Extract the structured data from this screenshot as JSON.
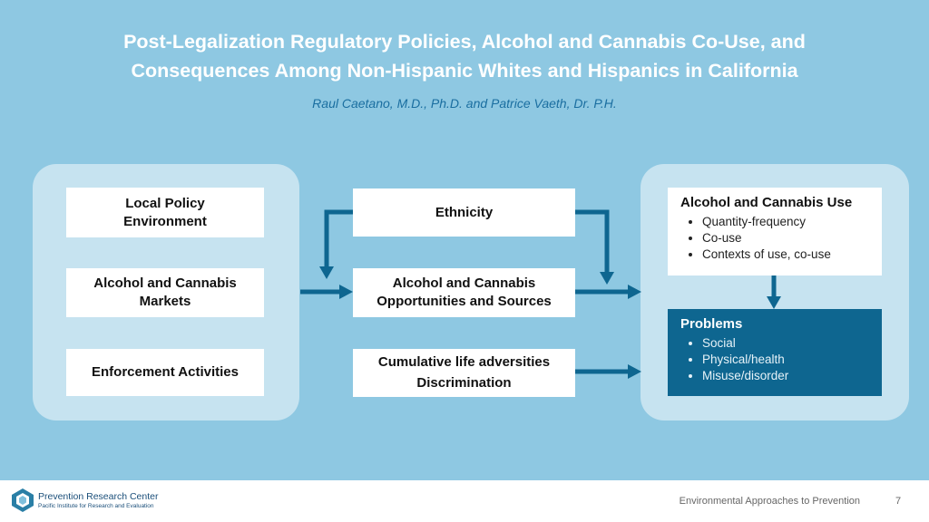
{
  "title": {
    "line1": "Post-Legalization Regulatory Policies, Alcohol and Cannabis Co-Use, and",
    "line2": "Consequences Among Non-Hispanic Whites and Hispanics in California"
  },
  "authors": "Raul Caetano, M.D., Ph.D. and Patrice Vaeth, Dr. P.H.",
  "left_boxes": {
    "local_policy": [
      "Local Policy",
      "Environment"
    ],
    "markets": [
      "Alcohol and Cannabis",
      "Markets"
    ],
    "enforcement": "Enforcement Activities"
  },
  "middle_boxes": {
    "ethnicity": "Ethnicity",
    "opportunities": [
      "Alcohol and Cannabis",
      "Opportunities and Sources"
    ],
    "adversities": [
      "Cumulative life adversities",
      "Discrimination"
    ]
  },
  "use_box": {
    "heading": "Alcohol and Cannabis Use",
    "items": [
      "Quantity-frequency",
      "Co-use",
      "Contexts of use, co-use"
    ]
  },
  "problems_box": {
    "heading": "Problems",
    "items": [
      "Social",
      "Physical/health",
      "Misuse/disorder"
    ]
  },
  "footer": {
    "logo_name": "Prevention Research Center",
    "logo_subtitle": "Pacific Institute for Research and Evaluation",
    "caption": "Environmental Approaches to Prevention",
    "page_number": "7"
  },
  "colors": {
    "background": "#8ec8e2",
    "panel": "#c6e3f0",
    "arrow": "#0e6690",
    "problems_fill": "#0e6690",
    "authors_text": "#1a6ea0"
  },
  "icons": {
    "logo": "prevention-research-center-logo"
  }
}
